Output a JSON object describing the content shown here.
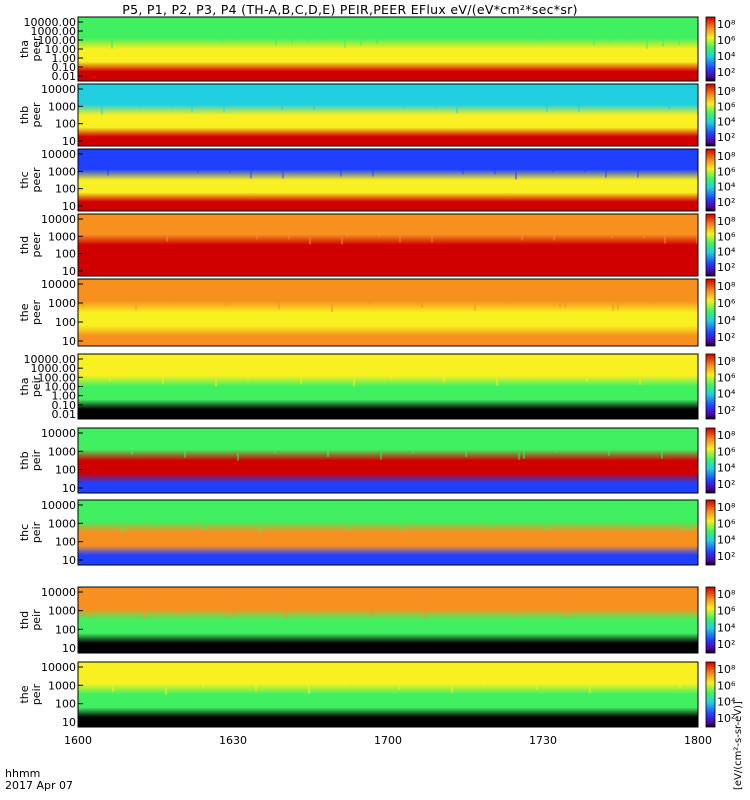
{
  "title": "P5, P1, P2, P3, P4 (TH-A,B,C,D,E) PEIR,PEER EFlux eV/(eV*cm²*sec*sr)",
  "time_axis": {
    "label": "hhmm",
    "date": "2017 Apr 07",
    "ticks": [
      "1600",
      "1630",
      "1700",
      "1730",
      "1800"
    ]
  },
  "colorbar": {
    "unit_label": "[eV/(cm²-s-sr-eV)]",
    "ticks": [
      "10⁸",
      "10⁶",
      "10⁴",
      "10²"
    ]
  },
  "colors": {
    "black": "#000000",
    "blue": "#2040ff",
    "cyan": "#20d0e0",
    "green": "#40f060",
    "yellow": "#f8f020",
    "orange": "#f89020",
    "red": "#d00000"
  },
  "chart_data": [
    {
      "type": "heatmap",
      "probe": "tha",
      "species": "peer",
      "ylabel": "tha peer",
      "yscale": "log",
      "y_ticks": [
        "10000.00",
        "1000.00",
        "100.00",
        "10.00",
        "1.00",
        "0.10",
        "0.01"
      ],
      "x_range": [
        "16:00",
        "18:00"
      ],
      "energy_bands": [
        {
          "band": "high",
          "color": "green"
        },
        {
          "band": "mid",
          "color": "yellow"
        },
        {
          "band": "low",
          "color": "red"
        }
      ]
    },
    {
      "type": "heatmap",
      "probe": "thb",
      "species": "peer",
      "ylabel": "thb peer",
      "yscale": "log",
      "y_ticks": [
        "10000",
        "1000",
        "100",
        "10"
      ],
      "x_range": [
        "16:00",
        "18:00"
      ],
      "energy_bands": [
        {
          "band": "high",
          "color": "cyan"
        },
        {
          "band": "mid",
          "color": "yellow"
        },
        {
          "band": "low",
          "color": "red"
        }
      ]
    },
    {
      "type": "heatmap",
      "probe": "thc",
      "species": "peer",
      "ylabel": "thc peer",
      "yscale": "log",
      "y_ticks": [
        "10000",
        "1000",
        "100",
        "10"
      ],
      "x_range": [
        "16:00",
        "18:00"
      ],
      "energy_bands": [
        {
          "band": "high",
          "color": "blue"
        },
        {
          "band": "mid",
          "color": "yellow"
        },
        {
          "band": "low",
          "color": "red"
        }
      ]
    },
    {
      "type": "heatmap",
      "probe": "thd",
      "species": "peer",
      "ylabel": "thd peer",
      "yscale": "log",
      "y_ticks": [
        "10000",
        "1000",
        "100",
        "10"
      ],
      "x_range": [
        "16:00",
        "18:00"
      ],
      "energy_bands": [
        {
          "band": "high",
          "color": "orange"
        },
        {
          "band": "mid",
          "color": "red"
        },
        {
          "band": "low",
          "color": "red"
        }
      ]
    },
    {
      "type": "heatmap",
      "probe": "the",
      "species": "peer",
      "ylabel": "the peer",
      "yscale": "log",
      "y_ticks": [
        "10000",
        "1000",
        "100",
        "10"
      ],
      "x_range": [
        "16:00",
        "18:00"
      ],
      "energy_bands": [
        {
          "band": "high",
          "color": "orange"
        },
        {
          "band": "mid",
          "color": "yellow"
        },
        {
          "band": "low",
          "color": "orange"
        }
      ]
    },
    {
      "type": "heatmap",
      "probe": "tha",
      "species": "peir",
      "ylabel": "tha peir",
      "yscale": "log",
      "y_ticks": [
        "10000.00",
        "1000.00",
        "100.00",
        "10.00",
        "1.00",
        "0.10",
        "0.01"
      ],
      "x_range": [
        "16:00",
        "18:00"
      ],
      "energy_bands": [
        {
          "band": "high",
          "color": "yellow"
        },
        {
          "band": "mid",
          "color": "green"
        },
        {
          "band": "low",
          "color": "black"
        }
      ]
    },
    {
      "type": "heatmap",
      "probe": "thb",
      "species": "peir",
      "ylabel": "thb peir",
      "yscale": "log",
      "y_ticks": [
        "10000",
        "1000",
        "100",
        "10"
      ],
      "x_range": [
        "16:00",
        "18:00"
      ],
      "energy_bands": [
        {
          "band": "high",
          "color": "green"
        },
        {
          "band": "mid",
          "color": "red"
        },
        {
          "band": "low",
          "color": "blue"
        }
      ]
    },
    {
      "type": "heatmap",
      "probe": "thc",
      "species": "peir",
      "ylabel": "thc peir",
      "yscale": "log",
      "y_ticks": [
        "10000",
        "1000",
        "100",
        "10"
      ],
      "x_range": [
        "16:00",
        "18:00"
      ],
      "energy_bands": [
        {
          "band": "high",
          "color": "green"
        },
        {
          "band": "mid",
          "color": "orange"
        },
        {
          "band": "low",
          "color": "blue"
        }
      ]
    },
    {
      "type": "heatmap",
      "probe": "thd",
      "species": "peir",
      "ylabel": "thd peir",
      "yscale": "log",
      "y_ticks": [
        "10000",
        "1000",
        "100",
        "10"
      ],
      "x_range": [
        "16:00",
        "18:00"
      ],
      "energy_bands": [
        {
          "band": "high",
          "color": "orange"
        },
        {
          "band": "mid",
          "color": "green"
        },
        {
          "band": "low",
          "color": "black"
        }
      ]
    },
    {
      "type": "heatmap",
      "probe": "the",
      "species": "peir",
      "ylabel": "the peir",
      "yscale": "log",
      "y_ticks": [
        "10000",
        "1000",
        "100",
        "10"
      ],
      "x_range": [
        "16:00",
        "18:00"
      ],
      "energy_bands": [
        {
          "band": "high",
          "color": "yellow"
        },
        {
          "band": "mid",
          "color": "green"
        },
        {
          "band": "low",
          "color": "black"
        }
      ]
    }
  ]
}
